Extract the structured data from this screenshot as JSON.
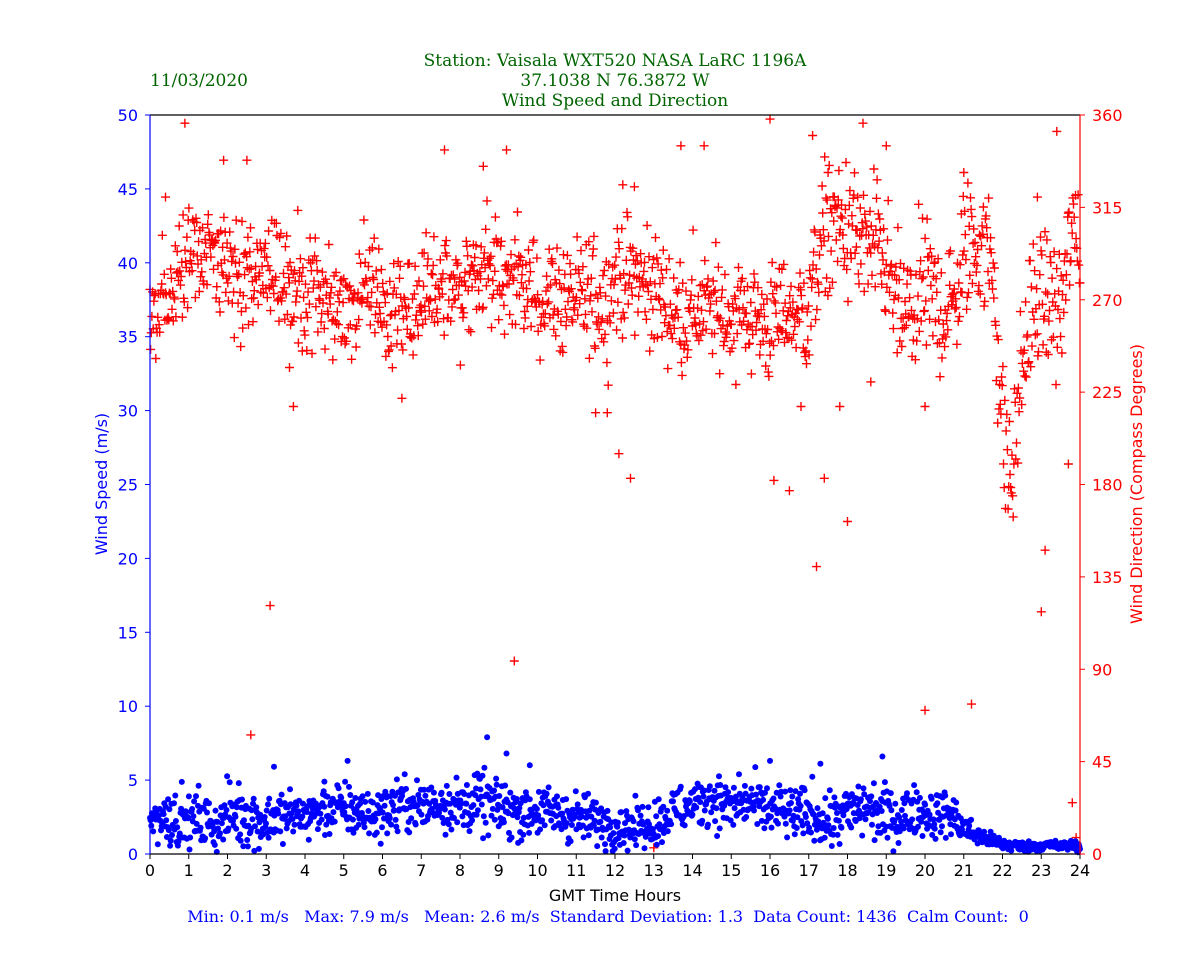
{
  "header": {
    "date": "11/03/2020",
    "station_line": "Station:  Vaisala WXT520  NASA LaRC 1196A",
    "coords_line": "37.1038 N 76.3872 W",
    "subtitle": "Wind Speed and Direction"
  },
  "footer": {
    "stats": "Min: 0.1 m/s   Max: 7.9 m/s   Mean: 2.6 m/s  Standard Deviation: 1.3  Data Count: 1436  Calm Count:  0"
  },
  "colors": {
    "title": "#006400",
    "speed": "#0000ff",
    "direction": "#ff0000",
    "axis": "#000000"
  },
  "chart_data": {
    "type": "scatter",
    "title": "Wind Speed and Direction",
    "xlabel": "GMT Time Hours",
    "ylabel_left": "Wind Speed (m/s)",
    "ylabel_right": "Wind Direction (Compass Degrees)",
    "xlim": [
      0,
      24
    ],
    "ylim_left": [
      0,
      50
    ],
    "ylim_right": [
      0,
      360
    ],
    "x_ticks": [
      0,
      1,
      2,
      3,
      4,
      5,
      6,
      7,
      8,
      9,
      10,
      11,
      12,
      13,
      14,
      15,
      16,
      17,
      18,
      19,
      20,
      21,
      22,
      23,
      24
    ],
    "y_left_ticks": [
      0,
      5,
      10,
      15,
      20,
      25,
      30,
      35,
      40,
      45,
      50
    ],
    "y_right_ticks": [
      0,
      45,
      90,
      135,
      180,
      225,
      270,
      315,
      360
    ],
    "grid": false,
    "series": [
      {
        "name": "Wind Speed",
        "axis": "left",
        "marker": "dot",
        "x": [
          0,
          0.25,
          0.5,
          0.75,
          1,
          1.25,
          1.5,
          1.75,
          2,
          2.25,
          2.5,
          2.75,
          3,
          3.25,
          3.5,
          3.75,
          4,
          4.25,
          4.5,
          4.75,
          5,
          5.25,
          5.5,
          5.75,
          6,
          6.25,
          6.5,
          6.75,
          7,
          7.25,
          7.5,
          7.75,
          8,
          8.25,
          8.5,
          8.75,
          9,
          9.25,
          9.5,
          9.75,
          10,
          10.25,
          10.5,
          10.75,
          11,
          11.25,
          11.5,
          11.75,
          12,
          12.25,
          12.5,
          12.75,
          13,
          13.25,
          13.5,
          13.75,
          14,
          14.25,
          14.5,
          14.75,
          15,
          15.25,
          15.5,
          15.75,
          16,
          16.25,
          16.5,
          16.75,
          17,
          17.25,
          17.5,
          17.75,
          18,
          18.25,
          18.5,
          18.75,
          19,
          19.25,
          19.5,
          19.75,
          20,
          20.25,
          20.5,
          20.75,
          21,
          21.25,
          21.5,
          21.75,
          22,
          22.25,
          22.5,
          22.75,
          23,
          23.25,
          23.5,
          23.75,
          24
        ],
        "y": [
          2.5,
          2.4,
          2.6,
          2.3,
          2.2,
          2.4,
          2.1,
          1.9,
          2.6,
          2.8,
          2.5,
          2.3,
          2.2,
          2.6,
          2.4,
          2.7,
          2.6,
          2.8,
          3.0,
          3.1,
          3.0,
          2.9,
          2.8,
          2.6,
          2.9,
          3.1,
          3.3,
          3.4,
          3.2,
          3.3,
          3.5,
          3.4,
          3.2,
          3.4,
          3.6,
          3.3,
          3.1,
          3.0,
          2.9,
          2.8,
          3.0,
          2.8,
          2.7,
          2.6,
          2.5,
          2.4,
          2.2,
          2.1,
          2.0,
          1.9,
          1.8,
          2.0,
          2.1,
          2.4,
          2.9,
          3.1,
          3.3,
          3.6,
          3.8,
          3.5,
          3.2,
          3.3,
          3.5,
          3.1,
          3.0,
          2.9,
          2.7,
          2.6,
          2.8,
          2.5,
          2.2,
          2.5,
          2.7,
          3.0,
          3.2,
          2.8,
          2.6,
          2.4,
          2.6,
          3.0,
          2.8,
          2.6,
          2.8,
          2.5,
          1.8,
          1.4,
          1.1,
          0.9,
          0.7,
          0.6,
          0.5,
          0.5,
          0.6,
          0.6,
          0.5,
          0.6,
          0.4
        ],
        "spread": [
          1.2,
          1.3,
          1.5,
          1.5,
          1.4,
          1.5,
          1.5,
          1.4,
          1.6,
          1.7,
          1.6,
          1.6,
          1.6,
          1.5,
          1.5,
          1.4,
          1.3,
          1.3,
          1.4,
          1.5,
          1.5,
          1.4,
          1.3,
          1.4,
          1.4,
          1.4,
          1.5,
          1.5,
          1.5,
          1.5,
          1.5,
          1.5,
          1.5,
          1.5,
          1.7,
          1.6,
          1.6,
          1.6,
          1.5,
          1.5,
          1.5,
          1.4,
          1.4,
          1.4,
          1.4,
          1.3,
          1.3,
          1.3,
          1.3,
          1.2,
          1.2,
          1.2,
          1.3,
          1.3,
          1.4,
          1.4,
          1.4,
          1.4,
          1.4,
          1.4,
          1.4,
          1.4,
          1.4,
          1.4,
          1.5,
          1.5,
          1.5,
          1.5,
          1.6,
          1.6,
          1.6,
          1.6,
          1.6,
          1.6,
          1.6,
          1.6,
          1.6,
          1.6,
          1.5,
          1.4,
          1.4,
          1.3,
          1.3,
          1.2,
          0.9,
          0.7,
          0.5,
          0.4,
          0.4,
          0.4,
          0.3,
          0.3,
          0.3,
          0.3,
          0.3,
          0.3,
          0.3
        ]
      },
      {
        "name": "Wind Direction",
        "axis": "right",
        "marker": "plus",
        "x": [
          0,
          0.25,
          0.5,
          0.75,
          1,
          1.25,
          1.5,
          1.75,
          2,
          2.25,
          2.5,
          2.75,
          3,
          3.25,
          3.5,
          3.75,
          4,
          4.25,
          4.5,
          4.75,
          5,
          5.25,
          5.5,
          5.75,
          6,
          6.25,
          6.5,
          6.75,
          7,
          7.25,
          7.5,
          7.75,
          8,
          8.25,
          8.5,
          8.75,
          9,
          9.25,
          9.5,
          9.75,
          10,
          10.25,
          10.5,
          10.75,
          11,
          11.25,
          11.5,
          11.75,
          12,
          12.25,
          12.5,
          12.75,
          13,
          13.25,
          13.5,
          13.75,
          14,
          14.25,
          14.5,
          14.75,
          15,
          15.25,
          15.5,
          15.75,
          16,
          16.25,
          16.5,
          16.75,
          17,
          17.25,
          17.5,
          17.75,
          18,
          18.25,
          18.5,
          18.75,
          19,
          19.25,
          19.5,
          19.75,
          20,
          20.25,
          20.5,
          20.75,
          21,
          21.25,
          21.5,
          21.75,
          22,
          22.25,
          22.5,
          22.75,
          23,
          23.25,
          23.5,
          23.75,
          24
        ],
        "y": [
          265,
          270,
          275,
          280,
          285,
          290,
          290,
          285,
          280,
          278,
          280,
          285,
          288,
          285,
          280,
          275,
          273,
          272,
          270,
          268,
          268,
          265,
          268,
          270,
          266,
          265,
          263,
          265,
          268,
          272,
          275,
          273,
          275,
          278,
          282,
          285,
          285,
          282,
          278,
          275,
          270,
          275,
          270,
          272,
          268,
          270,
          272,
          268,
          282,
          282,
          280,
          278,
          275,
          270,
          265,
          262,
          264,
          265,
          265,
          263,
          263,
          265,
          262,
          260,
          258,
          262,
          265,
          262,
          265,
          290,
          305,
          305,
          305,
          300,
          295,
          293,
          288,
          265,
          262,
          265,
          275,
          270,
          265,
          268,
          290,
          300,
          295,
          290,
          205,
          180,
          240,
          262,
          270,
          270,
          262,
          300,
          300
        ],
        "spread": [
          25,
          25,
          25,
          25,
          25,
          25,
          25,
          25,
          25,
          25,
          25,
          25,
          25,
          25,
          25,
          25,
          25,
          25,
          25,
          25,
          25,
          25,
          25,
          25,
          25,
          25,
          25,
          25,
          25,
          25,
          25,
          25,
          25,
          25,
          25,
          25,
          25,
          25,
          25,
          25,
          25,
          25,
          25,
          25,
          25,
          25,
          25,
          25,
          25,
          25,
          25,
          25,
          25,
          25,
          25,
          25,
          25,
          25,
          25,
          25,
          25,
          25,
          25,
          25,
          25,
          25,
          25,
          25,
          30,
          30,
          30,
          30,
          30,
          30,
          30,
          30,
          30,
          30,
          30,
          30,
          30,
          30,
          30,
          30,
          30,
          30,
          30,
          30,
          30,
          30,
          30,
          30,
          30,
          30,
          30,
          30,
          30
        ]
      }
    ],
    "outliers": {
      "speed_x": [
        4.5,
        5.1,
        8.7,
        9.2,
        9.8,
        15.2,
        16.0,
        17.3,
        18.9,
        3.2
      ],
      "speed_y": [
        4.9,
        6.3,
        7.9,
        6.8,
        6.0,
        5.4,
        6.3,
        6.1,
        6.6,
        5.9
      ],
      "direction_x": [
        0.4,
        0.9,
        1.9,
        2.5,
        2.6,
        3.1,
        3.6,
        3.7,
        6.5,
        7.6,
        8.6,
        9.2,
        9.4,
        11.5,
        11.8,
        12.1,
        12.2,
        12.4,
        12.5,
        13.0,
        13.7,
        14.3,
        16.0,
        16.1,
        16.5,
        16.8,
        17.1,
        17.2,
        17.4,
        17.5,
        17.8,
        18.0,
        18.4,
        18.6,
        19.0,
        20.0,
        20.0,
        21.0,
        21.2,
        22.9,
        23.0,
        23.1,
        23.4,
        23.7,
        23.8,
        23.9
      ],
      "direction_y": [
        320,
        356,
        338,
        338,
        58,
        121,
        237,
        218,
        222,
        343,
        335,
        343,
        94,
        215,
        215,
        195,
        326,
        183,
        325,
        3,
        345,
        345,
        358,
        182,
        177,
        218,
        350,
        140,
        183,
        332,
        218,
        162,
        356,
        230,
        345,
        70,
        218,
        332,
        73,
        320,
        118,
        148,
        352,
        190,
        25,
        8
      ]
    }
  }
}
